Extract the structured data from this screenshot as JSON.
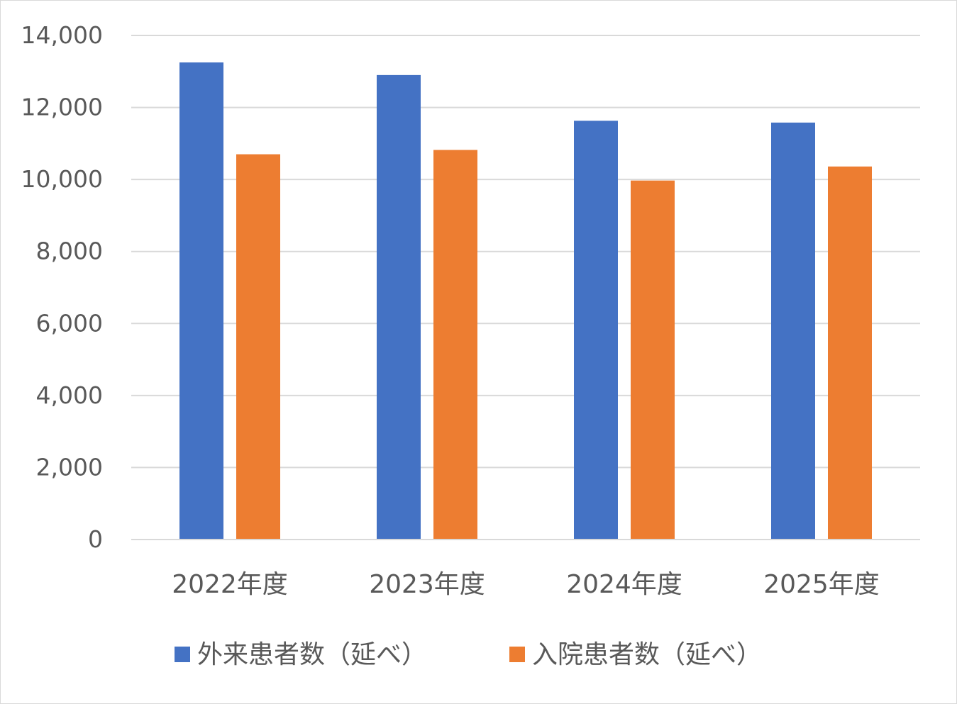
{
  "chart_data": {
    "type": "bar",
    "title": "",
    "xlabel": "",
    "ylabel": "",
    "categories": [
      "2022年度",
      "2023年度",
      "2024年度",
      "2025年度"
    ],
    "series": [
      {
        "name": "外来患者数（延べ）",
        "color": "#4472C4",
        "values": [
          13250,
          12900,
          11630,
          11580
        ]
      },
      {
        "name": "入院患者数（延べ）",
        "color": "#ED7D31",
        "values": [
          10700,
          10820,
          9970,
          10360
        ]
      }
    ],
    "ylim": [
      0,
      14000
    ],
    "yticks": [
      0,
      2000,
      4000,
      6000,
      8000,
      10000,
      12000,
      14000
    ],
    "ytick_labels": [
      "0",
      "2,000",
      "4,000",
      "6,000",
      "8,000",
      "10,000",
      "12,000",
      "14,000"
    ],
    "grid": true,
    "legend_position": "bottom"
  }
}
